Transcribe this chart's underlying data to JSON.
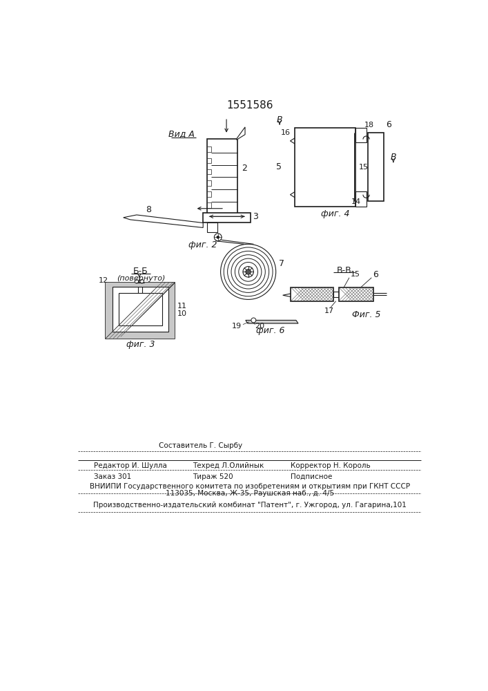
{
  "patent_number": "1551586",
  "bg_color": "#ffffff",
  "line_color": "#1a1a1a",
  "fig_width": 7.07,
  "fig_height": 10.0,
  "bottom_texts": {
    "sostavitel": "Составитель Г. Сырбу",
    "redaktor": "Редактор И. Шулла",
    "tekhred": "Техред Л.Олийнык",
    "korrektor": "Корректор Н. Король",
    "zakaz": "Заказ 301",
    "tirazh": "Тираж 520",
    "podpisnoe": "Подписное",
    "vniip": "ВНИИПИ Государственного комитета по изобретениям и открытиям при ГКНТ СССР",
    "address": "113035, Москва, Ж-35, Раушская наб., д. 4/5",
    "kombinat": "Производственно-издательский комбинат \"Патент\", г. Ужгород, ул. Гагарина,101"
  }
}
